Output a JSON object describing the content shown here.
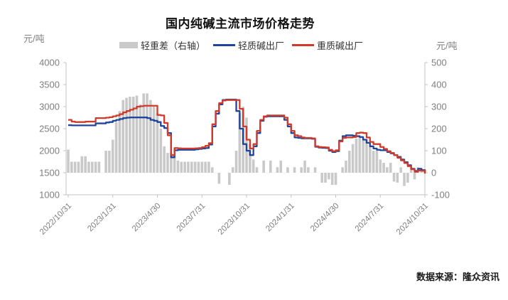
{
  "title": "国内纯碱主流市场价格走势",
  "footer": {
    "source_label": "数据来源：隆众资讯"
  },
  "axes": {
    "left_unit": "元/吨",
    "right_unit": "元/吨"
  },
  "legend": [
    {
      "label": "轻重差（右轴）",
      "type": "bar",
      "color": "#c9c9c9"
    },
    {
      "label": "轻质碱出厂",
      "type": "line",
      "color": "#1e459b"
    },
    {
      "label": "重质碱出厂",
      "type": "line",
      "color": "#d03a2b"
    }
  ],
  "chart_data": {
    "type": "combo",
    "title": "国内纯碱主流市场价格走势",
    "x_tick_labels": [
      "2022/10/31",
      "2023/1/31",
      "2023/4/30",
      "2023/7/31",
      "2023/10/31",
      "2024/1/31",
      "2024/4/30",
      "2024/7/31",
      "2024/10/31"
    ],
    "x_frequency": "weekly",
    "left_axis": {
      "title": "元/吨",
      "min": 1000,
      "max": 4000,
      "ticks": [
        4000,
        3500,
        3000,
        2500,
        2000,
        1500,
        1000
      ]
    },
    "right_axis": {
      "title": "元/吨",
      "min": -100,
      "max": 500,
      "ticks": [
        500,
        400,
        300,
        200,
        100,
        0,
        -100
      ]
    },
    "grid": false,
    "legend_position": "top",
    "series": [
      {
        "name": "轻重差（右轴）",
        "type": "bar",
        "axis": "right",
        "color": "#c9c9c9",
        "values": [
          105,
          50,
          50,
          50,
          75,
          75,
          50,
          50,
          50,
          50,
          0,
          100,
          100,
          150,
          230,
          280,
          330,
          340,
          345,
          345,
          350,
          310,
          360,
          360,
          330,
          300,
          270,
          200,
          120,
          90,
          90,
          80,
          55,
          50,
          50,
          50,
          50,
          50,
          50,
          50,
          50,
          50,
          25,
          0,
          -50,
          0,
          0,
          -55,
          25,
          100,
          270,
          300,
          250,
          130,
          60,
          25,
          0,
          55,
          0,
          55,
          0,
          25,
          55,
          0,
          25,
          0,
          25,
          0,
          25,
          55,
          25,
          0,
          25,
          0,
          -45,
          -45,
          -30,
          -55,
          -55,
          0,
          25,
          55,
          100,
          130,
          155,
          160,
          155,
          150,
          120,
          100,
          100,
          60,
          45,
          25,
          45,
          -40,
          -45,
          25,
          -60,
          -45,
          25,
          -30,
          25,
          20,
          15
        ]
      },
      {
        "name": "轻质碱出厂",
        "type": "line",
        "axis": "left",
        "color": "#1e459b",
        "values": [
          2580,
          2575,
          2575,
          2575,
          2575,
          2575,
          2575,
          2575,
          2620,
          2620,
          2620,
          2640,
          2650,
          2680,
          2700,
          2720,
          2740,
          2750,
          2755,
          2755,
          2755,
          2755,
          2755,
          2740,
          2700,
          2680,
          2650,
          2560,
          2515,
          2400,
          1850,
          2010,
          2020,
          2020,
          2020,
          2020,
          2020,
          2030,
          2040,
          2050,
          2060,
          2140,
          2550,
          2840,
          3050,
          3150,
          3160,
          3160,
          3160,
          2900,
          2500,
          2150,
          2000,
          1900,
          2100,
          2400,
          2680,
          2770,
          2780,
          2780,
          2780,
          2780,
          2780,
          2700,
          2550,
          2400,
          2300,
          2290,
          2280,
          2280,
          2280,
          2270,
          2090,
          2070,
          2065,
          2060,
          2000,
          1970,
          1990,
          2230,
          2330,
          2350,
          2350,
          2340,
          2330,
          2310,
          2250,
          2180,
          2100,
          2050,
          2020,
          2010,
          2010,
          1970,
          1940,
          1900,
          1860,
          1800,
          1740,
          1670,
          1590,
          1540,
          1590,
          1560,
          1500
        ]
      },
      {
        "name": "重质碱出厂",
        "type": "line",
        "axis": "left",
        "color": "#d03a2b",
        "values": [
          2700,
          2660,
          2650,
          2650,
          2650,
          2660,
          2660,
          2660,
          2740,
          2740,
          2740,
          2750,
          2760,
          2780,
          2800,
          2830,
          2870,
          2900,
          2930,
          2960,
          3000,
          3010,
          3020,
          3020,
          3020,
          3020,
          2810,
          2800,
          2630,
          2350,
          1900,
          2060,
          2055,
          2050,
          2050,
          2050,
          2050,
          2055,
          2060,
          2080,
          2110,
          2170,
          2600,
          2900,
          3080,
          3140,
          3150,
          3150,
          3150,
          3150,
          2950,
          2550,
          2250,
          2050,
          2150,
          2450,
          2700,
          2780,
          2800,
          2800,
          2800,
          2800,
          2800,
          2750,
          2600,
          2450,
          2350,
          2330,
          2300,
          2290,
          2290,
          2280,
          2100,
          2085,
          2080,
          2075,
          2020,
          1990,
          2010,
          2210,
          2290,
          2300,
          2300,
          2310,
          2400,
          2410,
          2400,
          2300,
          2200,
          2150,
          2150,
          2085,
          2040,
          1990,
          1950,
          1900,
          1840,
          1780,
          1720,
          1650,
          1580,
          1520,
          1550,
          1545,
          1480
        ]
      }
    ]
  }
}
